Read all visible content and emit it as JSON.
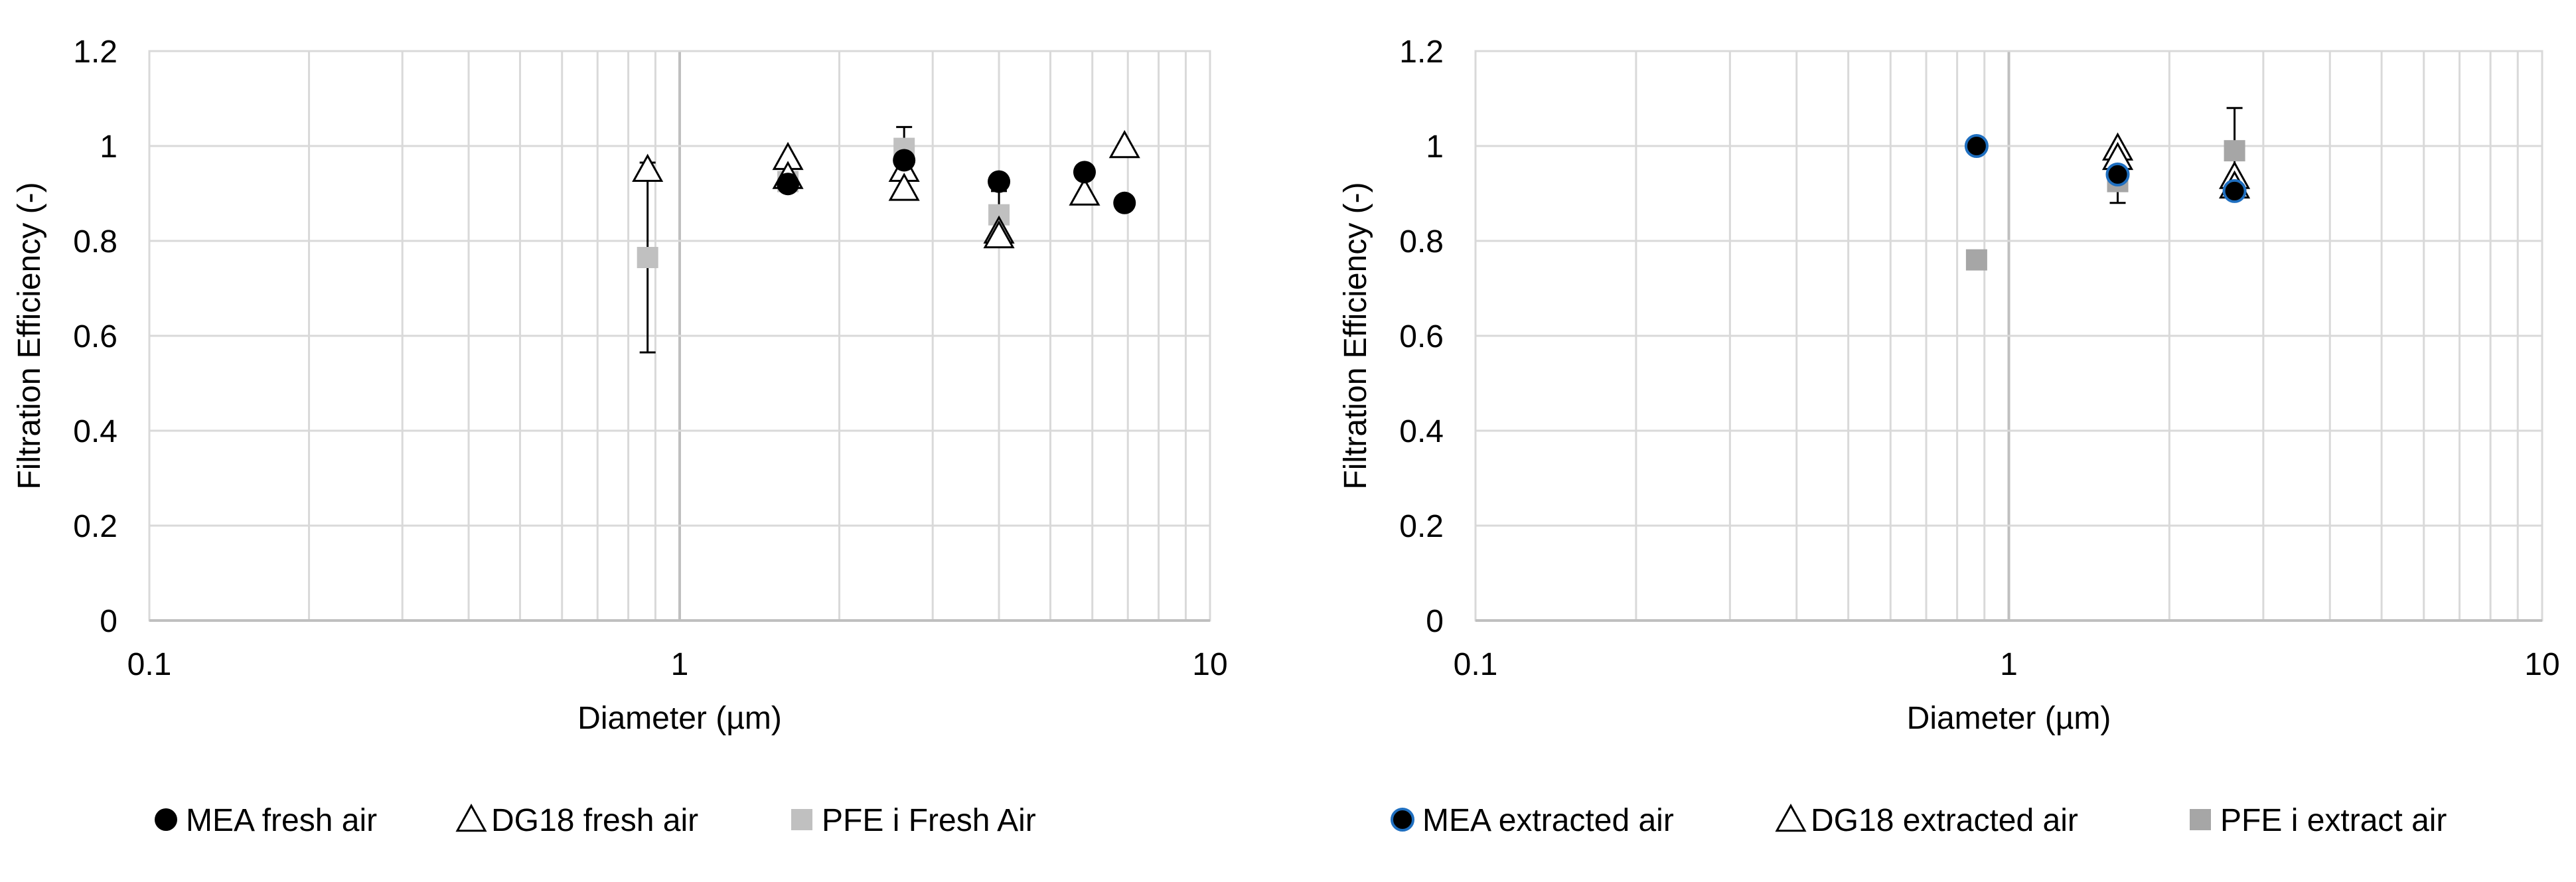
{
  "colors": {
    "grid": "#d9d9d9",
    "axis": "#bfbfbf",
    "mea": "#000000",
    "mea_edge_extracted": "#1f6fc0",
    "pfe_fresh": "#c0c0c0",
    "pfe_extract": "#a6a6a6"
  },
  "chart_data": [
    {
      "type": "scatter",
      "id": "fresh",
      "xscale": "log",
      "xlim": [
        0.1,
        10
      ],
      "ylim": [
        0,
        1.2
      ],
      "yticks": [
        "0",
        "0.2",
        "0.4",
        "0.6",
        "0.8",
        "1",
        "1.2"
      ],
      "xticks": [
        "0.1",
        "1",
        "10"
      ],
      "xlabel": "Diameter (µm)",
      "ylabel": "Filtration Efficiency (-)",
      "legend_position": "bottom",
      "series": [
        {
          "name": "MEA fresh air",
          "marker": "circle",
          "points": [
            {
              "x": 1.6,
              "y": 0.92
            },
            {
              "x": 2.65,
              "y": 0.97
            },
            {
              "x": 4.0,
              "y": 0.925
            },
            {
              "x": 5.8,
              "y": 0.945
            },
            {
              "x": 6.9,
              "y": 0.88
            }
          ]
        },
        {
          "name": "DG18 fresh air",
          "marker": "triangle",
          "points": [
            {
              "x": 0.87,
              "y": 0.95
            },
            {
              "x": 1.6,
              "y": 0.975
            },
            {
              "x": 1.6,
              "y": 0.935
            },
            {
              "x": 2.65,
              "y": 0.95
            },
            {
              "x": 2.65,
              "y": 0.91
            },
            {
              "x": 4.0,
              "y": 0.82
            },
            {
              "x": 4.0,
              "y": 0.81
            },
            {
              "x": 5.8,
              "y": 0.9
            },
            {
              "x": 6.9,
              "y": 1.0
            }
          ]
        },
        {
          "name": "PFE i Fresh Air",
          "marker": "square",
          "points": [
            {
              "x": 0.87,
              "y": 0.765,
              "err": 0.2
            },
            {
              "x": 1.6,
              "y": 0.925
            },
            {
              "x": 2.65,
              "y": 0.995,
              "err": 0.045
            },
            {
              "x": 4.0,
              "y": 0.855,
              "err": 0.05
            }
          ]
        }
      ]
    },
    {
      "type": "scatter",
      "id": "extracted",
      "xscale": "log",
      "xlim": [
        0.1,
        10
      ],
      "ylim": [
        0,
        1.2
      ],
      "yticks": [
        "0",
        "0.2",
        "0.4",
        "0.6",
        "0.8",
        "1",
        "1.2"
      ],
      "xticks": [
        "0.1",
        "1",
        "10"
      ],
      "xlabel": "Diameter (µm)",
      "ylabel": "Filtration Efficiency (-)",
      "legend_position": "bottom",
      "series": [
        {
          "name": "MEA extracted air",
          "marker": "circle-edged",
          "points": [
            {
              "x": 0.87,
              "y": 1.0
            },
            {
              "x": 1.6,
              "y": 0.94
            },
            {
              "x": 2.65,
              "y": 0.905
            }
          ]
        },
        {
          "name": "DG18 extracted air",
          "marker": "triangle",
          "points": [
            {
              "x": 1.6,
              "y": 0.995
            },
            {
              "x": 1.6,
              "y": 0.975
            },
            {
              "x": 2.65,
              "y": 0.935
            },
            {
              "x": 2.65,
              "y": 0.915
            }
          ]
        },
        {
          "name": "PFE i extract air",
          "marker": "square",
          "points": [
            {
              "x": 0.87,
              "y": 0.76
            },
            {
              "x": 1.6,
              "y": 0.925,
              "err": 0.045
            },
            {
              "x": 2.65,
              "y": 0.99,
              "err": 0.09
            }
          ]
        }
      ]
    }
  ]
}
